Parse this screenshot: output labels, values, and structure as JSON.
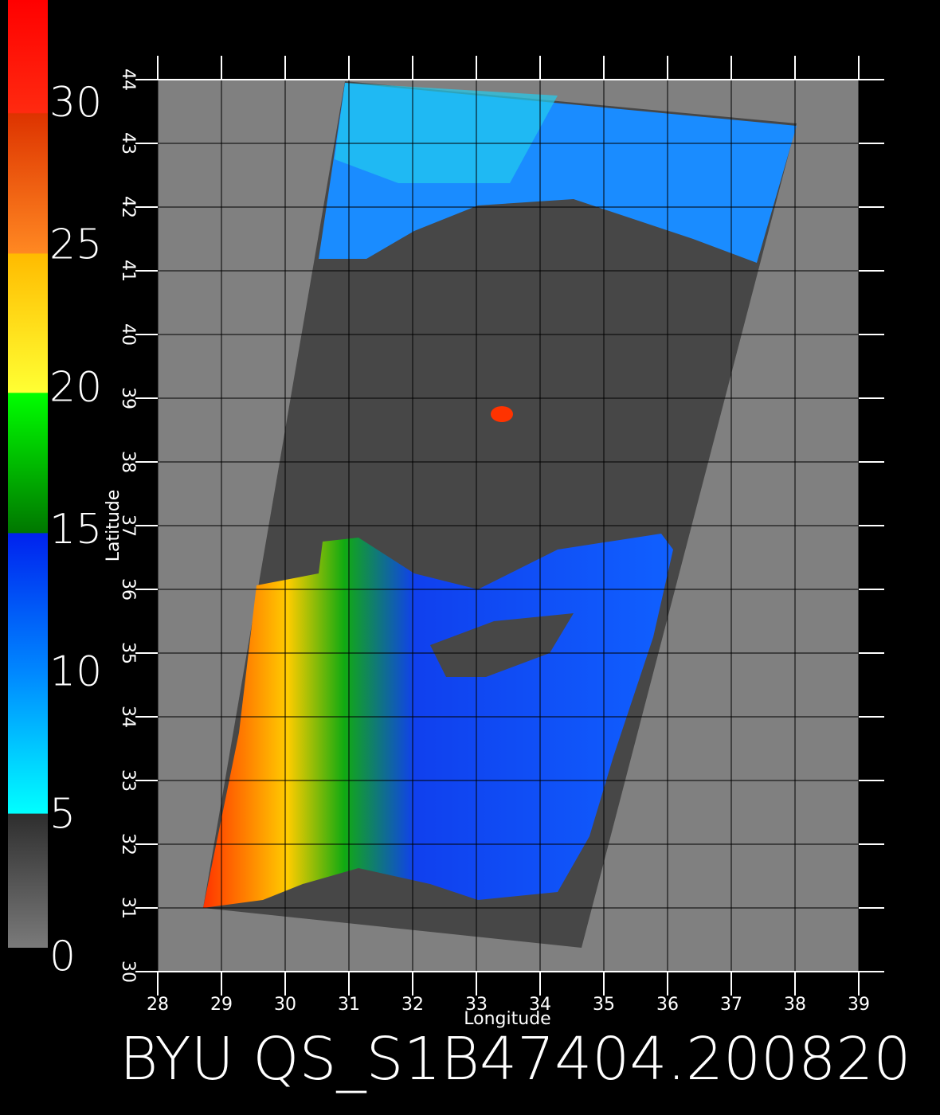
{
  "title": "BYU QS_S1B47404.200820",
  "colorbar": {
    "ticks": [
      0,
      5,
      10,
      15,
      20,
      25,
      30
    ]
  },
  "map": {
    "x_label": "Longitude",
    "y_label": "Latitude",
    "xticks": [
      28,
      29,
      30,
      31,
      32,
      33,
      34,
      35,
      36,
      37,
      38,
      39
    ],
    "yticks": [
      30,
      31,
      32,
      33,
      34,
      35,
      36,
      37,
      38,
      39,
      40,
      41,
      42,
      43,
      44
    ]
  }
}
